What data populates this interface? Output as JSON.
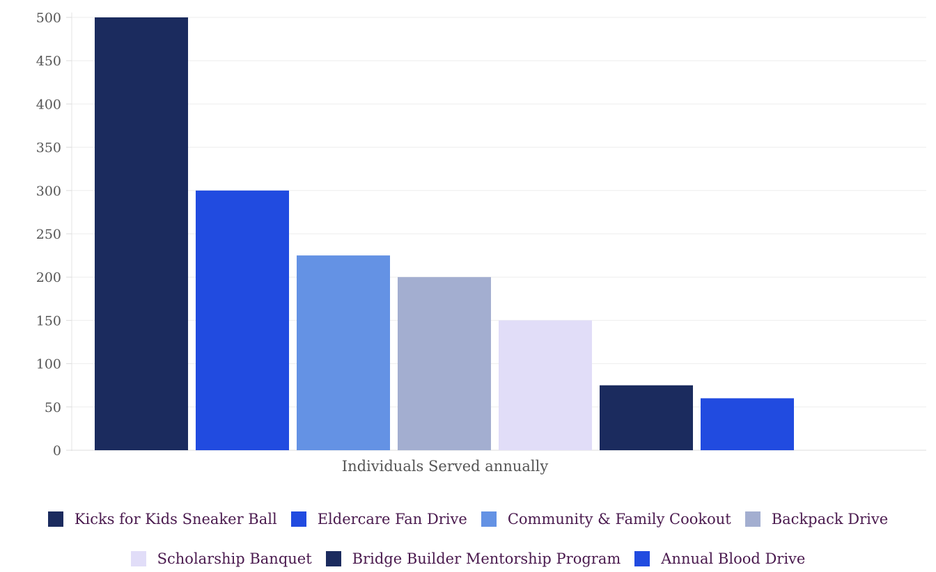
{
  "chart_data": {
    "type": "bar",
    "title": "",
    "xlabel": "Individuals Served annually",
    "ylabel": "",
    "ylim": [
      0,
      500
    ],
    "yticks": [
      0,
      50,
      100,
      150,
      200,
      250,
      300,
      350,
      400,
      450,
      500
    ],
    "grid": true,
    "legend_position": "bottom",
    "series": [
      {
        "name": "Kicks for Kids Sneaker Ball",
        "value": 500,
        "color": "#1b2b5e"
      },
      {
        "name": "Eldercare Fan Drive",
        "value": 300,
        "color": "#214be0"
      },
      {
        "name": "Community & Family Cookout",
        "value": 225,
        "color": "#6492e4"
      },
      {
        "name": "Backpack Drive",
        "value": 200,
        "color": "#a3aed0"
      },
      {
        "name": "Scholarship Banquet",
        "value": 150,
        "color": "#e1ddf8"
      },
      {
        "name": "Bridge Builder Mentorship Program",
        "value": 75,
        "color": "#1b2b5e"
      },
      {
        "name": "Annual Blood Drive",
        "value": 60,
        "color": "#214be0"
      }
    ]
  }
}
